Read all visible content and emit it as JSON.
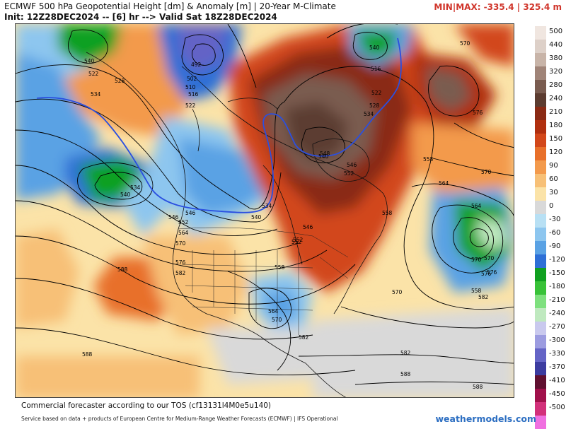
{
  "header": {
    "title_line1": "ECMWF 500 hPa Geopotential Height [dm] & Anomaly [m] | 20-Year M-Climate",
    "title_line2": "Init: 12Z28DEC2024 -- [6] hr --> Valid Sat 18Z28DEC2024",
    "minmax": "MIN|MAX: -335.4 | 325.4 m"
  },
  "footer": {
    "tos": "Commercial forecaster according to our TOS (cf13131l4M0e5u140)",
    "credit": "Service based on data + products of European Centre for Medium-Range Weather Forecasts (ECMWF) | IFS Operational",
    "brand": "weathermodels.com"
  },
  "colorbar": {
    "labels": [
      "500",
      "440",
      "380",
      "320",
      "280",
      "240",
      "210",
      "180",
      "150",
      "120",
      "90",
      "60",
      "30",
      "0",
      "-30",
      "-60",
      "-90",
      "-120",
      "-150",
      "-180",
      "-210",
      "-240",
      "-270",
      "-300",
      "-330",
      "-370",
      "-410",
      "-450",
      "-500"
    ],
    "colors": [
      "#f0e6e0",
      "#ddd0c8",
      "#c8b4a8",
      "#a08478",
      "#7a5c50",
      "#5c3c30",
      "#8a2a14",
      "#b02f0f",
      "#d2471a",
      "#e8702a",
      "#f39a4c",
      "#f7c077",
      "#fbe3a8",
      "#d9d9d9",
      "#b8e0f4",
      "#8dc6ef",
      "#5aa2e4",
      "#2e6fd6",
      "#10a020",
      "#38c238",
      "#7ee07e",
      "#bfe9bf",
      "#c9c9ee",
      "#9c9ce0",
      "#6464c6",
      "#3c3ca0",
      "#601030",
      "#a0104a",
      "#d2307a",
      "#f070e0"
    ]
  },
  "contours": {
    "labels": [
      "540",
      "522",
      "534",
      "528",
      "492",
      "502",
      "510",
      "516",
      "522",
      "540",
      "516",
      "522",
      "528",
      "534",
      "576",
      "570",
      "540",
      "534",
      "546",
      "552",
      "558",
      "564",
      "570",
      "546",
      "552",
      "540",
      "558",
      "564",
      "570",
      "558",
      "576",
      "570",
      "546",
      "552",
      "564",
      "570",
      "576",
      "582",
      "570",
      "558",
      "564",
      "570",
      "576",
      "582",
      "588",
      "588",
      "582",
      "588",
      "588",
      "548",
      "540",
      "534",
      "552",
      "546",
      "582"
    ]
  },
  "colors": {
    "title_accent": "#d0352b",
    "brand": "#2d6fc2",
    "height_540_contour": "#2a4fe0"
  }
}
